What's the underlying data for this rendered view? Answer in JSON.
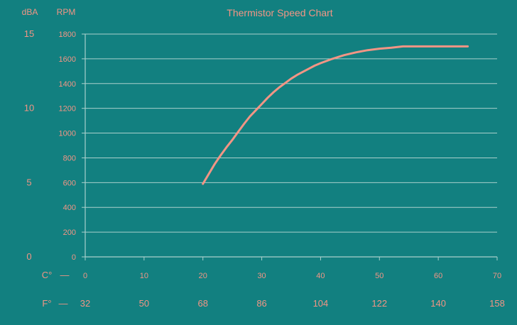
{
  "colors": {
    "background": "#128080",
    "grid": "#a9cfcc",
    "accent": "#f29585"
  },
  "chart_data": {
    "type": "line",
    "title": "Thermistor Speed Chart",
    "grid": true,
    "x_axis": {
      "label": "C°",
      "dash": "—",
      "range": [
        0,
        70
      ],
      "ticks": [
        0,
        10,
        20,
        30,
        40,
        50,
        60,
        70
      ]
    },
    "x_axis_secondary": {
      "label": "F°",
      "dash": "—",
      "ticks": [
        "32",
        "50",
        "68",
        "86",
        "104",
        "122",
        "140",
        "158"
      ]
    },
    "y_axis": {
      "label": "RPM",
      "range": [
        0,
        1800
      ],
      "ticks": [
        "0",
        "200",
        "400",
        "600",
        "800",
        "1000",
        "1200",
        "1400",
        "1600",
        "1800"
      ]
    },
    "y_axis_secondary": {
      "label": "dBA",
      "ticks": [
        {
          "label": "0",
          "rpm": 0
        },
        {
          "label": "5",
          "rpm": 600
        },
        {
          "label": "10",
          "rpm": 1200
        },
        {
          "label": "15",
          "rpm": 1800
        }
      ]
    },
    "series": [
      {
        "x": [
          20,
          21,
          22,
          23,
          24,
          25,
          26,
          27,
          28,
          29,
          30,
          31,
          32,
          33,
          34,
          35,
          36,
          37,
          38,
          39,
          40,
          42,
          44,
          46,
          48,
          50,
          52,
          54,
          56,
          58,
          60,
          62,
          64,
          65
        ],
        "y": [
          590,
          670,
          750,
          820,
          885,
          945,
          1010,
          1075,
          1135,
          1185,
          1235,
          1285,
          1330,
          1370,
          1405,
          1440,
          1470,
          1495,
          1520,
          1545,
          1565,
          1600,
          1630,
          1652,
          1670,
          1682,
          1690,
          1700,
          1700,
          1700,
          1700,
          1700,
          1700,
          1700
        ]
      }
    ]
  }
}
